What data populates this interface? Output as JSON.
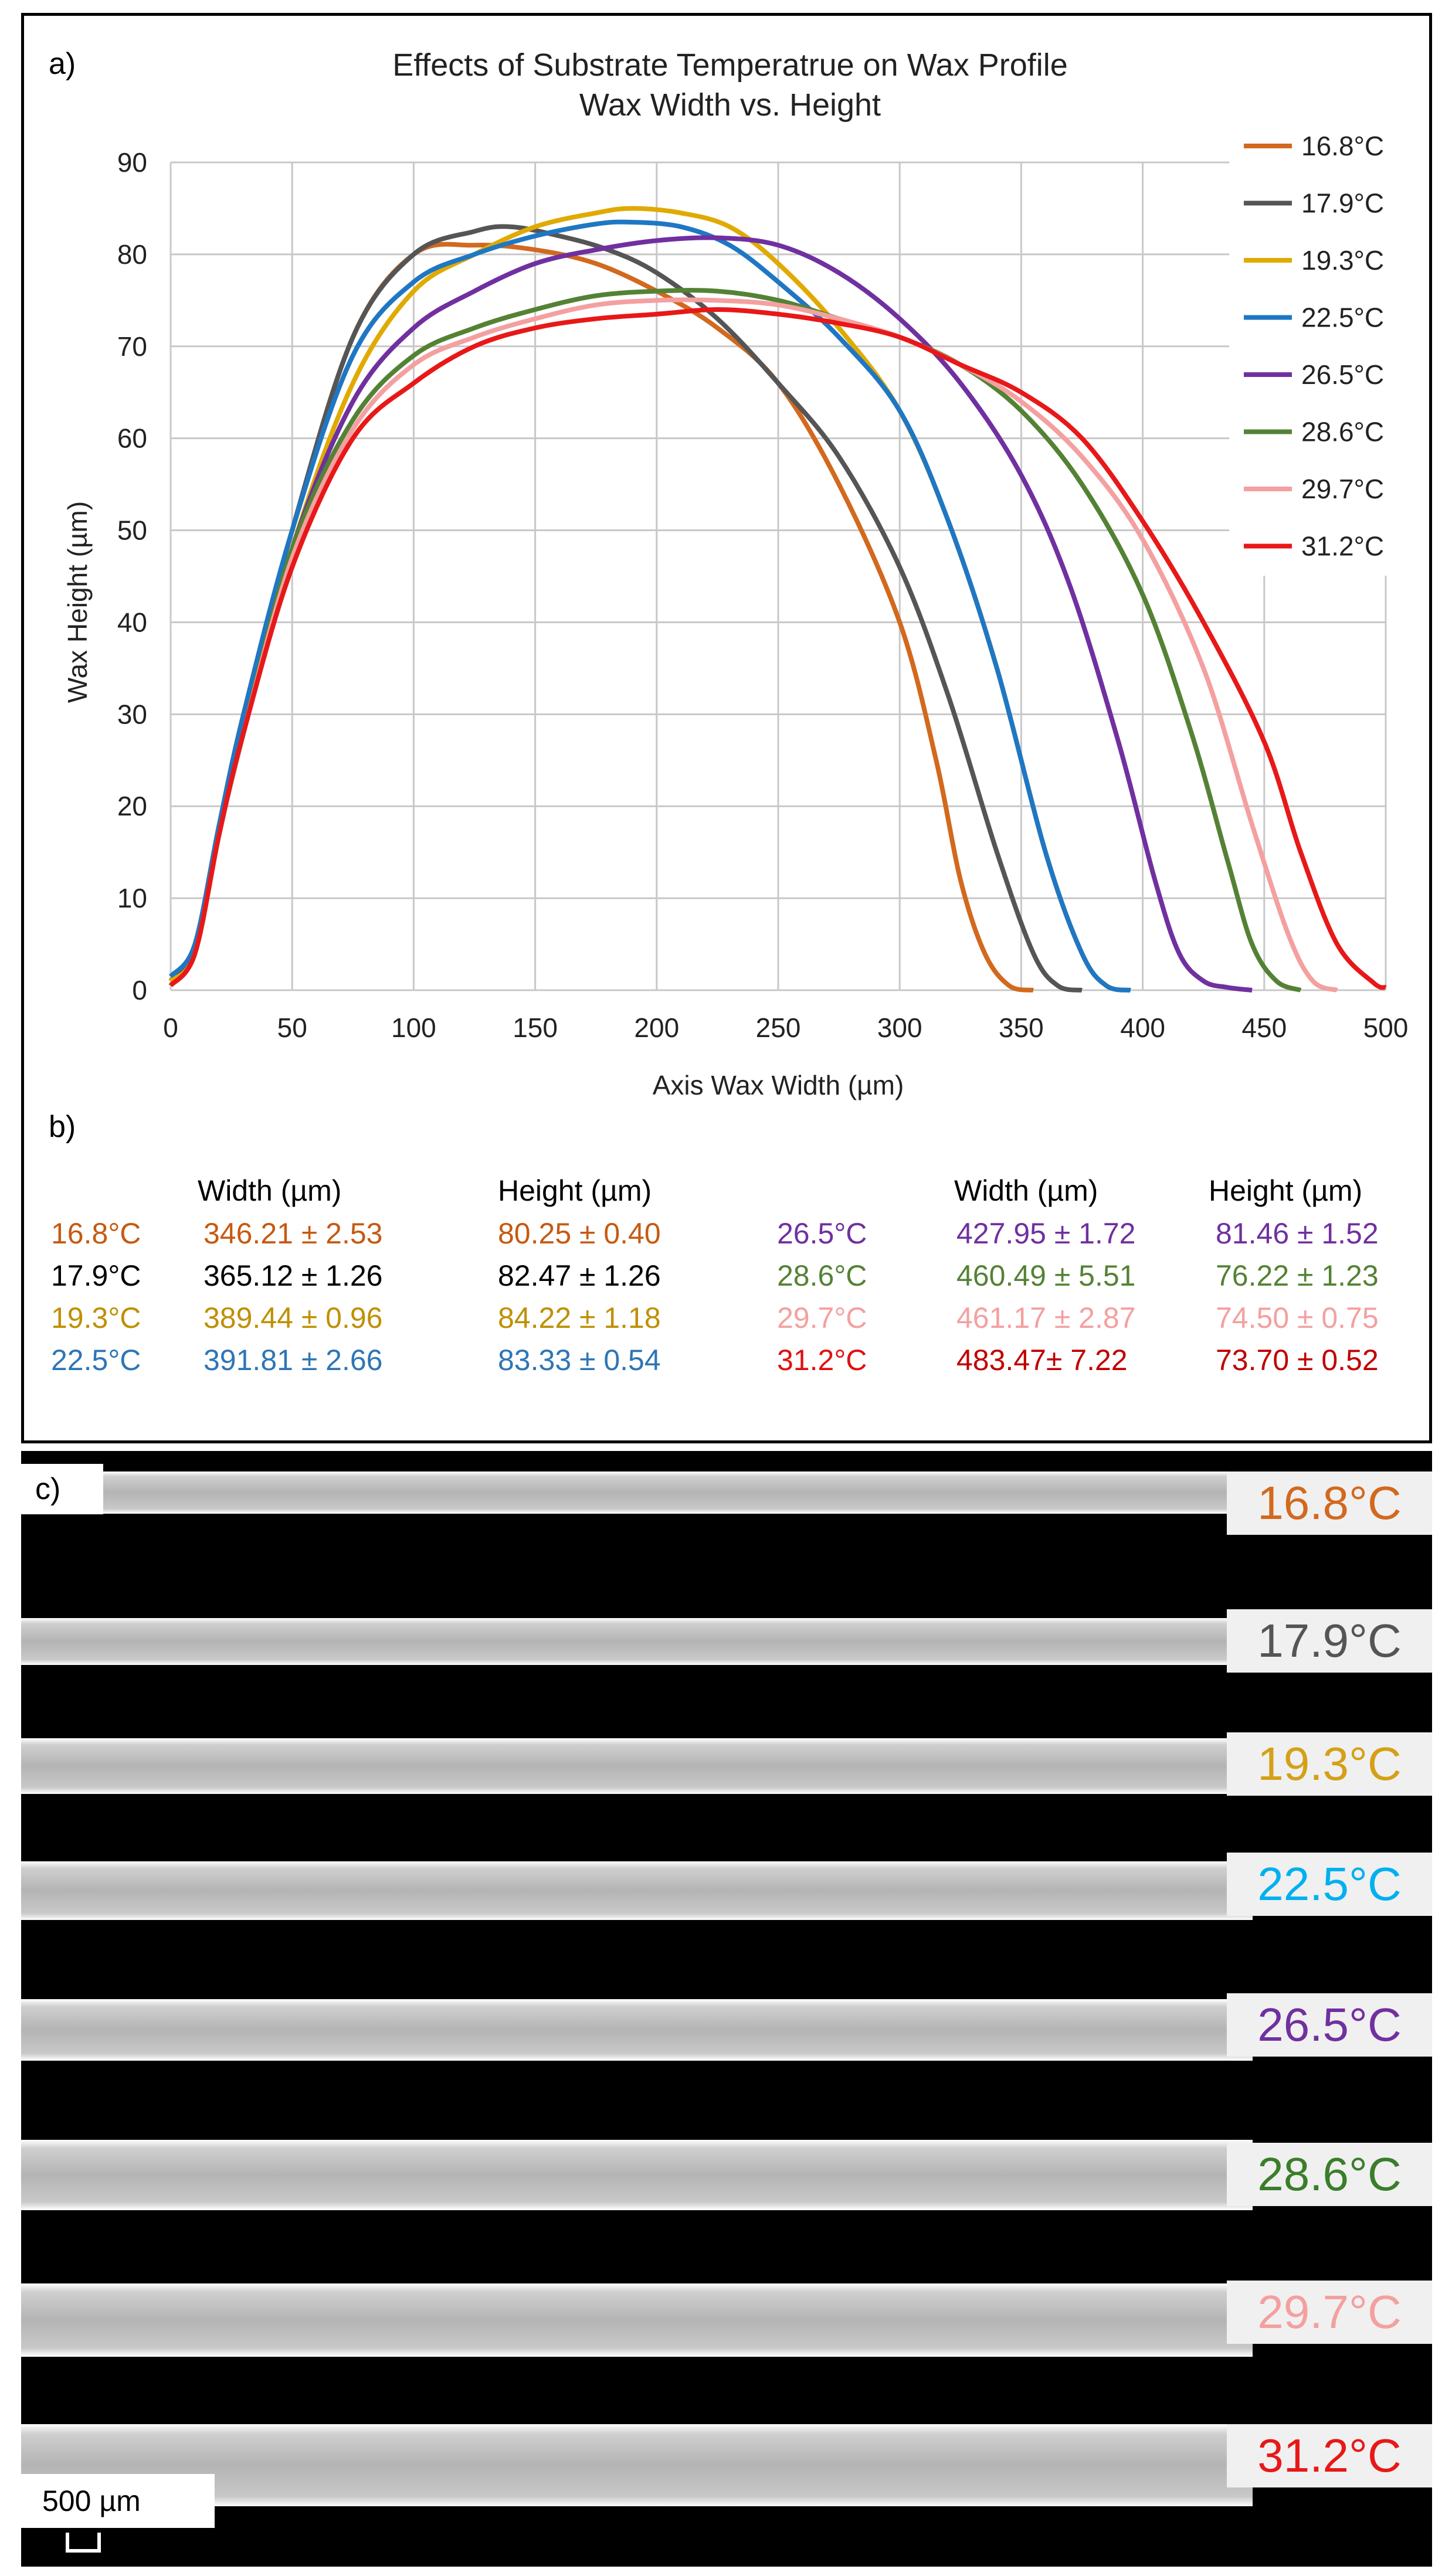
{
  "panel_labels": {
    "a": "a)",
    "b": "b)",
    "c": "c)"
  },
  "chart_data": {
    "type": "line",
    "title": "Effects of Substrate Temperatrue on Wax Profile",
    "subtitle": "Wax Width vs. Height",
    "xlabel": "Axis Wax Width (µm)",
    "ylabel": "Wax Height (µm)",
    "xlim": [
      0,
      500
    ],
    "ylim": [
      0,
      90
    ],
    "xticks": [
      0,
      50,
      100,
      150,
      200,
      250,
      300,
      350,
      400,
      450,
      500
    ],
    "yticks": [
      0,
      10,
      20,
      30,
      40,
      50,
      60,
      70,
      80,
      90
    ],
    "grid": true,
    "legend_position": "right",
    "series": [
      {
        "name": "16.8°C",
        "color": "#d2691e",
        "x": [
          0,
          10,
          20,
          30,
          50,
          75,
          100,
          125,
          150,
          175,
          200,
          225,
          250,
          275,
          300,
          315,
          325,
          335,
          345,
          355
        ],
        "y": [
          1,
          5,
          18,
          30,
          50,
          71,
          80,
          81,
          80.5,
          79,
          76,
          72,
          66,
          55,
          40,
          25,
          12,
          4,
          0.5,
          0
        ]
      },
      {
        "name": "17.9°C",
        "color": "#555555",
        "x": [
          0,
          10,
          20,
          30,
          50,
          75,
          100,
          125,
          140,
          160,
          180,
          200,
          225,
          250,
          275,
          300,
          320,
          340,
          355,
          365,
          375
        ],
        "y": [
          1,
          5,
          18,
          30,
          50,
          71,
          80,
          82.5,
          83,
          82,
          80.5,
          78,
          73,
          66,
          58,
          46,
          32,
          15,
          4,
          0.5,
          0
        ]
      },
      {
        "name": "19.3°C",
        "color": "#e0aa00",
        "x": [
          0,
          10,
          20,
          30,
          50,
          75,
          100,
          125,
          150,
          175,
          190,
          210,
          230,
          250,
          275,
          300,
          320,
          340,
          360,
          375,
          385,
          395
        ],
        "y": [
          1,
          4,
          17,
          28,
          48,
          66,
          76,
          80,
          83,
          84.5,
          85,
          84.5,
          83,
          79,
          72,
          63,
          51,
          35,
          15,
          4,
          0.5,
          0
        ]
      },
      {
        "name": "22.5°C",
        "color": "#1f77c4",
        "x": [
          0,
          10,
          20,
          30,
          50,
          75,
          100,
          125,
          150,
          175,
          190,
          210,
          230,
          250,
          275,
          300,
          320,
          340,
          360,
          375,
          385,
          395
        ],
        "y": [
          1.5,
          5,
          18,
          30,
          50,
          69,
          77,
          80,
          82,
          83.3,
          83.5,
          83,
          81,
          77,
          71,
          63,
          51,
          35,
          15,
          4,
          0.5,
          0
        ]
      },
      {
        "name": "26.5°C",
        "color": "#7030a0",
        "x": [
          0,
          10,
          20,
          30,
          50,
          75,
          100,
          125,
          150,
          175,
          200,
          225,
          250,
          275,
          300,
          325,
          350,
          370,
          390,
          405,
          415,
          425,
          435,
          445
        ],
        "y": [
          0.5,
          4,
          17,
          28,
          48,
          64,
          72,
          76,
          79,
          80.5,
          81.5,
          81.8,
          81,
          78,
          73,
          66,
          56,
          44,
          27,
          12,
          4,
          1,
          0.3,
          0
        ]
      },
      {
        "name": "28.6°C",
        "color": "#548235",
        "x": [
          0,
          10,
          20,
          30,
          50,
          75,
          100,
          125,
          150,
          175,
          200,
          225,
          250,
          275,
          300,
          325,
          350,
          375,
          400,
          420,
          435,
          445,
          455,
          465
        ],
        "y": [
          0.5,
          4,
          17,
          28,
          48,
          62,
          69,
          72,
          74,
          75.5,
          76,
          76,
          75,
          73,
          71,
          68,
          63,
          55,
          43,
          28,
          14,
          5,
          1,
          0
        ]
      },
      {
        "name": "29.7°C",
        "color": "#f4a0a0",
        "x": [
          0,
          10,
          20,
          30,
          50,
          75,
          100,
          125,
          150,
          175,
          200,
          225,
          250,
          275,
          300,
          325,
          350,
          375,
          400,
          425,
          445,
          460,
          470,
          480
        ],
        "y": [
          0.5,
          4,
          17,
          28,
          47,
          61,
          68,
          71,
          73,
          74.5,
          75,
          75,
          74.5,
          73,
          71,
          68,
          64,
          58,
          49,
          35,
          18,
          6,
          1,
          0
        ]
      },
      {
        "name": "31.2°C",
        "color": "#e81818",
        "x": [
          0,
          10,
          20,
          30,
          50,
          75,
          100,
          125,
          150,
          175,
          200,
          225,
          250,
          275,
          300,
          325,
          350,
          375,
          400,
          425,
          450,
          465,
          480,
          495,
          500
        ],
        "y": [
          0.5,
          4,
          17,
          28,
          46,
          60,
          66,
          70,
          72,
          73,
          73.5,
          74,
          73.5,
          72.5,
          71,
          68,
          65,
          60,
          51,
          40,
          27,
          15,
          5,
          0.8,
          0.3
        ]
      }
    ]
  },
  "table": {
    "header_width": "Width (µm)",
    "header_height": "Height (µm)",
    "left_rows": [
      {
        "temp": "16.8°C",
        "width": "346.21 ± 2.53",
        "height": "80.25 ± 0.40",
        "color": "#c55a11",
        "temp_color": "#c55a11"
      },
      {
        "temp": "17.9°C",
        "width": "365.12 ± 1.26",
        "height": "82.47 ± 1.26",
        "color": "#000000",
        "temp_color": "#000000"
      },
      {
        "temp": "19.3°C",
        "width": "389.44 ± 0.96",
        "height": "84.22 ± 1.18",
        "color": "#bf9000",
        "temp_color": "#bf9000"
      },
      {
        "temp": "22.5°C",
        "width": "391.81 ± 2.66",
        "height": "83.33 ± 0.54",
        "color": "#2e75b6",
        "temp_color": "#2e75b6"
      }
    ],
    "right_rows": [
      {
        "temp": "26.5°C",
        "width": "427.95 ± 1.72",
        "height": "81.46 ± 1.52",
        "color": "#7030a0",
        "temp_color": "#7030a0"
      },
      {
        "temp": "28.6°C",
        "width": "460.49 ± 5.51",
        "height": "76.22 ± 1.23",
        "color": "#548235",
        "temp_color": "#548235"
      },
      {
        "temp": "29.7°C",
        "width": "461.17 ± 2.87",
        "height": "74.50 ± 0.75",
        "color": "#f4a0a0",
        "temp_color": "#f4a0a0"
      },
      {
        "temp": "31.2°C",
        "width": "483.47± 7.22",
        "height": "73.70 ± 0.52",
        "color": "#c00000",
        "temp_color": "#e01010"
      }
    ]
  },
  "micrographs": {
    "scale_text": "500 µm",
    "strips": [
      {
        "label": "16.8°C",
        "color": "#d2691e"
      },
      {
        "label": "17.9°C",
        "color": "#555555"
      },
      {
        "label": "19.3°C",
        "color": "#d4a017"
      },
      {
        "label": "22.5°C",
        "color": "#00b0f0"
      },
      {
        "label": "26.5°C",
        "color": "#7030a0"
      },
      {
        "label": "28.6°C",
        "color": "#3a7d2a"
      },
      {
        "label": "29.7°C",
        "color": "#f4a0a0"
      },
      {
        "label": "31.2°C",
        "color": "#e81818"
      }
    ]
  }
}
